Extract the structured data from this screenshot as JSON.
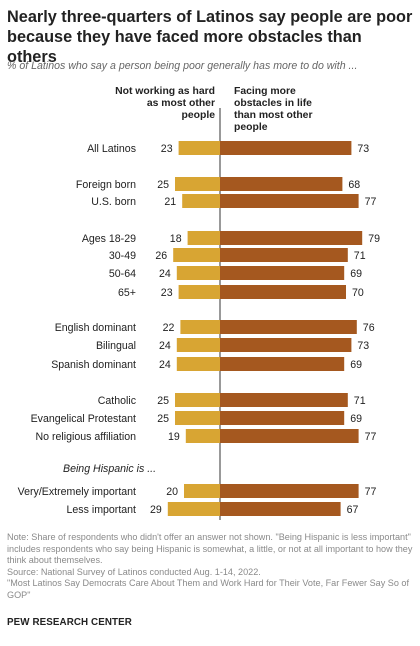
{
  "header": {
    "title": "Nearly three-quarters of Latinos say people are poor because they have faced more obstacles than others",
    "subtitle": "% of Latinos who say a person being poor generally has more to do with ..."
  },
  "chart_data": {
    "type": "bar",
    "orientation": "horizontal-diverging",
    "series": [
      {
        "name": "Not working as hard as most other people",
        "color": "#d8a533"
      },
      {
        "name": "Facing more obstacles in life than most other people",
        "color": "#a5581f"
      }
    ],
    "rows": [
      {
        "label": "All Latinos",
        "left": 23,
        "right": 73
      },
      {
        "label": "Foreign born",
        "left": 25,
        "right": 68
      },
      {
        "label": "U.S. born",
        "left": 21,
        "right": 77
      },
      {
        "label": "Ages 18-29",
        "left": 18,
        "right": 79
      },
      {
        "label": "30-49",
        "left": 26,
        "right": 71
      },
      {
        "label": "50-64",
        "left": 24,
        "right": 69
      },
      {
        "label": "65+",
        "left": 23,
        "right": 70
      },
      {
        "label": "English dominant",
        "left": 22,
        "right": 76
      },
      {
        "label": "Bilingual",
        "left": 24,
        "right": 73
      },
      {
        "label": "Spanish dominant",
        "left": 24,
        "right": 69
      },
      {
        "label": "Catholic",
        "left": 25,
        "right": 71
      },
      {
        "label": "Evangelical Protestant",
        "left": 25,
        "right": 69
      },
      {
        "label": "No religious affiliation",
        "left": 19,
        "right": 77
      },
      {
        "label": "Very/Extremely important",
        "left": 20,
        "right": 77
      },
      {
        "label": "Less important",
        "left": 29,
        "right": 67
      }
    ],
    "group_heading": "Being Hispanic is ..."
  },
  "notes": {
    "note": "Note: Share of respondents who didn't offer an answer not shown. \"Being Hispanic is less important\" includes respondents who say being Hispanic is somewhat, a little, or not at all important to how they think about themselves.",
    "source": "Source: National Survey of Latinos conducted Aug. 1-14, 2022.",
    "report": "\"Most Latinos Say Democrats Care About Them and Work Hard for Their Vote, Far Fewer Say So of GOP\""
  },
  "footer": {
    "brand": "PEW RESEARCH CENTER"
  }
}
